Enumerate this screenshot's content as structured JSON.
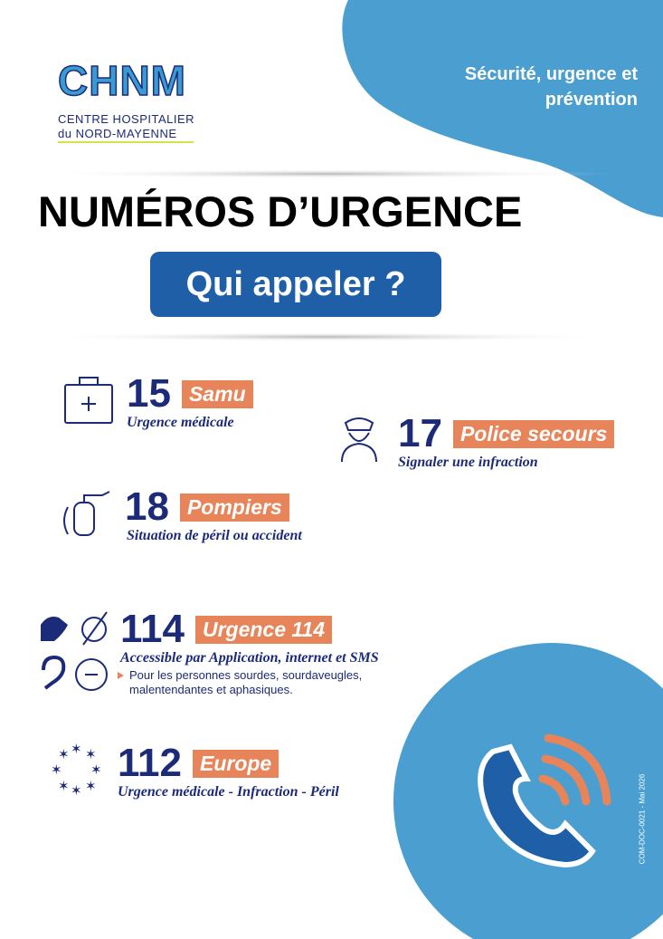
{
  "header": {
    "logo": "CHNM",
    "logo_line1": "CENTRE HOSPITALIER",
    "logo_line2": "du NORD-MAYENNE",
    "tagline_line1": "Sécurité, urgence et",
    "tagline_line2": "prévention"
  },
  "title": "NUMÉROS D’URGENCE",
  "subtitle": "Qui appeler ?",
  "numbers": [
    {
      "number": 15,
      "name": "Samu",
      "description": "Urgence médicale"
    },
    {
      "number": 17,
      "name": "Police secours",
      "description": "Signaler une infraction"
    },
    {
      "number": 18,
      "name": "Pompiers",
      "description": "Situation de péril ou accident"
    },
    {
      "number": 114,
      "name": "Urgence 114",
      "description": "Accessible par Application, internet et SMS",
      "note": "Pour les personnes sourdes, sourdaveugles, malentendantes et aphasiques."
    },
    {
      "number": 112,
      "name": "Europe",
      "description": "Urgence médicale - Infraction - Péril"
    }
  ],
  "footer": {
    "reference": "COM-DOC-0021 - Mai 2026"
  }
}
